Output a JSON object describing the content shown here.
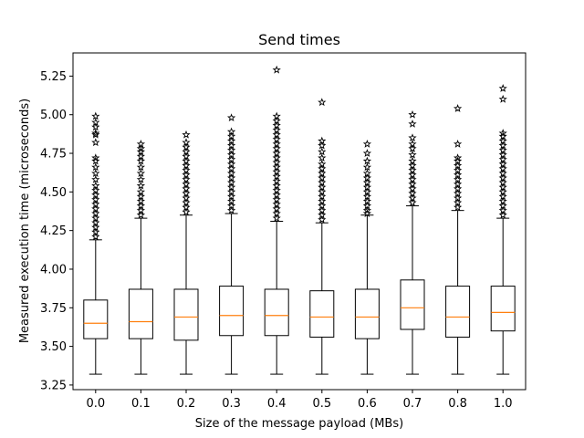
{
  "chart_data": {
    "type": "box",
    "title": "Send times",
    "xlabel": "Size of the message payload (MBs)",
    "ylabel": "Measured execution time (microseconds)",
    "ylim": [
      3.22,
      5.4
    ],
    "yticks": [
      "3.25",
      "3.50",
      "3.75",
      "4.00",
      "4.25",
      "4.50",
      "4.75",
      "5.00",
      "5.25"
    ],
    "categories": [
      "0.0",
      "0.1",
      "0.2",
      "0.3",
      "0.4",
      "0.5",
      "0.6",
      "0.7",
      "0.8",
      "1.0"
    ],
    "colors": {
      "box": "#000000",
      "median": "#ff7f0e",
      "flier": "#000000"
    },
    "flier_marker": "star",
    "boxes": [
      {
        "label": "0.0",
        "whisker_low": 3.32,
        "q1": 3.55,
        "median": 3.65,
        "q3": 3.8,
        "whisker_high": 4.19,
        "outliers": [
          4.21,
          4.24,
          4.27,
          4.3,
          4.33,
          4.36,
          4.39,
          4.42,
          4.45,
          4.48,
          4.51,
          4.54,
          4.58,
          4.62,
          4.66,
          4.7,
          4.72,
          4.82,
          4.87,
          4.88,
          4.92,
          4.95,
          4.99
        ]
      },
      {
        "label": "0.1",
        "whisker_low": 3.32,
        "q1": 3.55,
        "median": 3.66,
        "q3": 3.87,
        "whisker_high": 4.33,
        "outliers": [
          4.35,
          4.38,
          4.41,
          4.44,
          4.47,
          4.5,
          4.54,
          4.58,
          4.62,
          4.66,
          4.7,
          4.73,
          4.76,
          4.78,
          4.81
        ]
      },
      {
        "label": "0.2",
        "whisker_low": 3.32,
        "q1": 3.54,
        "median": 3.69,
        "q3": 3.87,
        "whisker_high": 4.35,
        "outliers": [
          4.37,
          4.4,
          4.43,
          4.46,
          4.49,
          4.52,
          4.55,
          4.58,
          4.61,
          4.64,
          4.67,
          4.7,
          4.73,
          4.76,
          4.79,
          4.82,
          4.87
        ]
      },
      {
        "label": "0.3",
        "whisker_low": 3.32,
        "q1": 3.57,
        "median": 3.7,
        "q3": 3.89,
        "whisker_high": 4.36,
        "outliers": [
          4.38,
          4.41,
          4.44,
          4.47,
          4.5,
          4.53,
          4.56,
          4.59,
          4.62,
          4.65,
          4.68,
          4.71,
          4.74,
          4.77,
          4.8,
          4.83,
          4.86,
          4.89,
          4.98
        ]
      },
      {
        "label": "0.4",
        "whisker_low": 3.32,
        "q1": 3.57,
        "median": 3.7,
        "q3": 3.87,
        "whisker_high": 4.31,
        "outliers": [
          4.33,
          4.36,
          4.39,
          4.42,
          4.45,
          4.48,
          4.51,
          4.54,
          4.57,
          4.6,
          4.63,
          4.66,
          4.69,
          4.72,
          4.75,
          4.78,
          4.81,
          4.84,
          4.87,
          4.9,
          4.93,
          4.96,
          4.99,
          5.29
        ]
      },
      {
        "label": "0.5",
        "whisker_low": 3.32,
        "q1": 3.56,
        "median": 3.69,
        "q3": 3.86,
        "whisker_high": 4.3,
        "outliers": [
          4.32,
          4.35,
          4.38,
          4.41,
          4.44,
          4.47,
          4.5,
          4.53,
          4.56,
          4.59,
          4.62,
          4.65,
          4.68,
          4.72,
          4.76,
          4.8,
          4.83,
          5.08
        ]
      },
      {
        "label": "0.6",
        "whisker_low": 3.32,
        "q1": 3.55,
        "median": 3.69,
        "q3": 3.87,
        "whisker_high": 4.35,
        "outliers": [
          4.36,
          4.38,
          4.41,
          4.44,
          4.47,
          4.5,
          4.53,
          4.56,
          4.59,
          4.62,
          4.66,
          4.7,
          4.75,
          4.81
        ]
      },
      {
        "label": "0.7",
        "whisker_low": 3.32,
        "q1": 3.61,
        "median": 3.75,
        "q3": 3.93,
        "whisker_high": 4.41,
        "outliers": [
          4.43,
          4.46,
          4.49,
          4.52,
          4.55,
          4.58,
          4.61,
          4.64,
          4.67,
          4.7,
          4.74,
          4.78,
          4.81,
          4.85,
          4.94,
          5.0
        ]
      },
      {
        "label": "0.8",
        "whisker_low": 3.32,
        "q1": 3.56,
        "median": 3.69,
        "q3": 3.89,
        "whisker_high": 4.38,
        "outliers": [
          4.4,
          4.43,
          4.46,
          4.49,
          4.52,
          4.55,
          4.58,
          4.61,
          4.64,
          4.67,
          4.7,
          4.72,
          4.81,
          5.04
        ]
      },
      {
        "label": "1.0",
        "whisker_low": 3.32,
        "q1": 3.6,
        "median": 3.72,
        "q3": 3.89,
        "whisker_high": 4.33,
        "outliers": [
          4.35,
          4.38,
          4.41,
          4.44,
          4.47,
          4.5,
          4.53,
          4.56,
          4.59,
          4.62,
          4.65,
          4.68,
          4.71,
          4.74,
          4.77,
          4.8,
          4.83,
          4.86,
          4.88,
          5.1,
          5.17
        ]
      }
    ]
  }
}
